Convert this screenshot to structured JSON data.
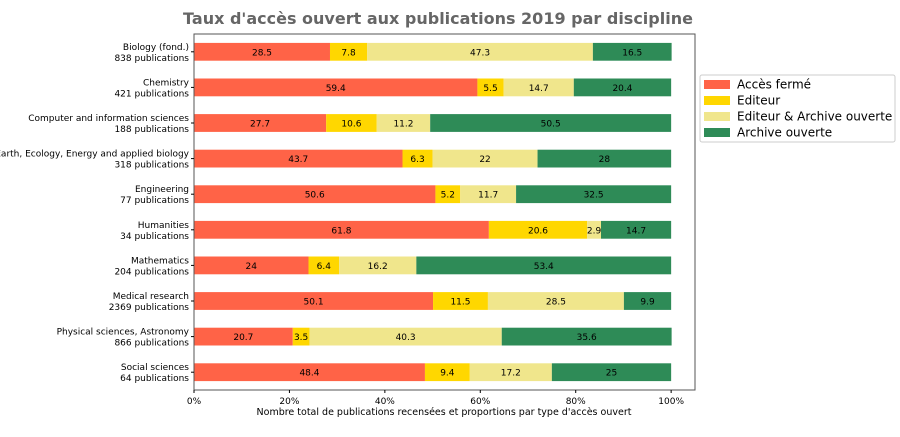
{
  "chart_data": {
    "type": "bar",
    "orientation": "horizontal-stacked",
    "title": "Taux d'accès ouvert aux publications 2019 par discipline",
    "xlabel": "Nombre total de publications recensées et proportions par type d'accès ouvert",
    "ylabel": "",
    "xlim": [
      0,
      105
    ],
    "xticks": [
      "0%",
      "20%",
      "40%",
      "60%",
      "80%",
      "100%"
    ],
    "grid": false,
    "legend_position": "right",
    "categories": [
      [
        "Biology (fond.)",
        "838 publications"
      ],
      [
        "Chemistry",
        "421 publications"
      ],
      [
        "Computer and  information sciences",
        "188 publications"
      ],
      [
        "Earth, Ecology, Energy and applied biology",
        "318 publications"
      ],
      [
        "Engineering",
        "77 publications"
      ],
      [
        "Humanities",
        "34 publications"
      ],
      [
        "Mathematics",
        "204 publications"
      ],
      [
        "Medical research",
        "2369 publications"
      ],
      [
        "Physical sciences, Astronomy",
        "866 publications"
      ],
      [
        "Social sciences",
        "64 publications"
      ]
    ],
    "series": [
      {
        "name": "Accès fermé",
        "color": "#ff6347",
        "values": [
          28.5,
          59.4,
          27.7,
          43.7,
          50.6,
          61.8,
          24.0,
          50.1,
          20.7,
          48.4
        ]
      },
      {
        "name": "Editeur",
        "color": "#ffd700",
        "values": [
          7.8,
          5.5,
          10.6,
          6.3,
          5.2,
          20.6,
          6.4,
          11.5,
          3.5,
          9.4
        ]
      },
      {
        "name": "Editeur & Archive ouverte",
        "color": "#f0e68c",
        "values": [
          47.3,
          14.7,
          11.2,
          22.0,
          11.7,
          2.9,
          16.2,
          28.5,
          40.3,
          17.2
        ]
      },
      {
        "name": "Archive ouverte",
        "color": "#2e8b57",
        "values": [
          16.5,
          20.4,
          50.5,
          28.0,
          32.5,
          14.7,
          53.4,
          9.9,
          35.6,
          25.0
        ]
      }
    ]
  }
}
